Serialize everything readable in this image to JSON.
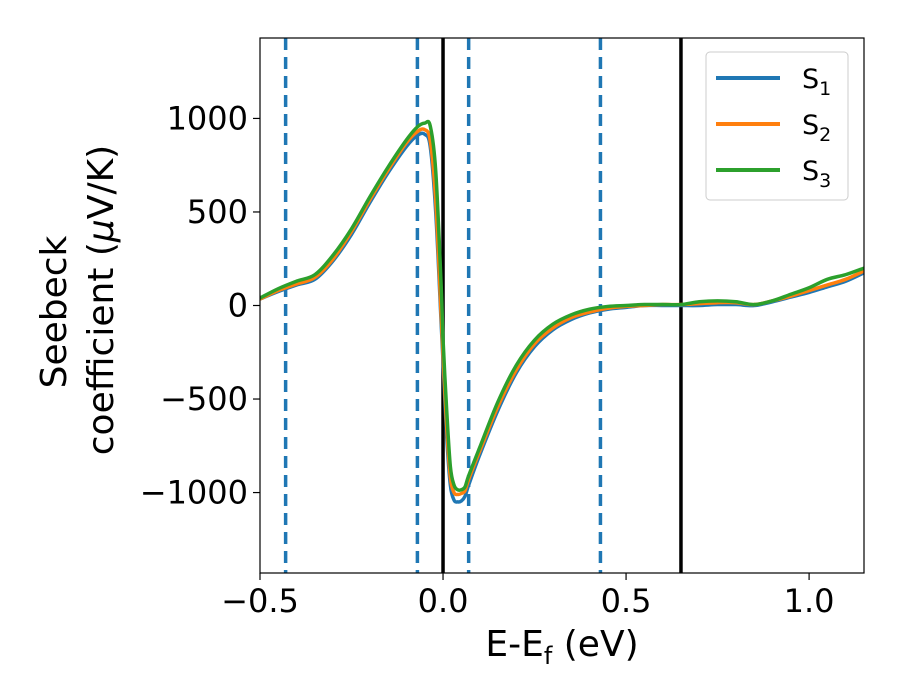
{
  "chart_data": {
    "type": "line",
    "title": "",
    "xlabel": "E-E",
    "xlabel_sub": "f",
    "xlabel_unit": " (eV)",
    "ylabel_line1": "Seebeck",
    "ylabel_line2_main": "coefficient  (",
    "ylabel_line2_mu": "μ",
    "ylabel_line2_unit": "V/K)",
    "xlim": [
      -0.5,
      1.15
    ],
    "ylim": [
      -1430,
      1430
    ],
    "xticks": [
      -0.5,
      0.0,
      0.5,
      1.0
    ],
    "xtick_labels": [
      "−0.5",
      "0.0",
      "0.5",
      "1.0"
    ],
    "yticks": [
      -1000,
      -500,
      0,
      500,
      1000
    ],
    "ytick_labels": [
      "−1000",
      "−500",
      "0",
      "500",
      "1000"
    ],
    "grid": false,
    "legend_position": "top-right",
    "series": [
      {
        "name": "S",
        "name_sub": "1",
        "color": "#1f77b4",
        "x": [
          -0.5,
          -0.45,
          -0.4,
          -0.35,
          -0.3,
          -0.25,
          -0.2,
          -0.15,
          -0.1,
          -0.07,
          -0.05,
          -0.035,
          -0.02,
          -0.005,
          0.0,
          0.01,
          0.02,
          0.03,
          0.04,
          0.05,
          0.06,
          0.07,
          0.1,
          0.15,
          0.2,
          0.25,
          0.3,
          0.35,
          0.4,
          0.45,
          0.5,
          0.55,
          0.6,
          0.65,
          0.7,
          0.75,
          0.8,
          0.85,
          0.9,
          0.95,
          1.0,
          1.05,
          1.1,
          1.15
        ],
        "y": [
          35,
          75,
          110,
          140,
          240,
          380,
          550,
          710,
          850,
          910,
          915,
          850,
          500,
          -100,
          -300,
          -700,
          -960,
          -1040,
          -1050,
          -1045,
          -1020,
          -960,
          -800,
          -560,
          -360,
          -220,
          -130,
          -75,
          -40,
          -20,
          -10,
          0,
          0,
          0,
          0,
          5,
          5,
          0,
          20,
          45,
          70,
          100,
          130,
          175
        ]
      },
      {
        "name": "S",
        "name_sub": "2",
        "color": "#ff7f0e",
        "x": [
          -0.5,
          -0.45,
          -0.4,
          -0.35,
          -0.3,
          -0.25,
          -0.2,
          -0.15,
          -0.1,
          -0.07,
          -0.05,
          -0.035,
          -0.02,
          -0.005,
          0.0,
          0.01,
          0.02,
          0.03,
          0.04,
          0.05,
          0.06,
          0.07,
          0.1,
          0.15,
          0.2,
          0.25,
          0.3,
          0.35,
          0.4,
          0.45,
          0.5,
          0.55,
          0.6,
          0.65,
          0.7,
          0.75,
          0.8,
          0.85,
          0.9,
          0.95,
          1.0,
          1.05,
          1.1,
          1.15
        ],
        "y": [
          35,
          80,
          115,
          150,
          250,
          395,
          565,
          725,
          870,
          930,
          940,
          880,
          560,
          -60,
          -260,
          -650,
          -920,
          -1000,
          -1010,
          -1005,
          -990,
          -930,
          -780,
          -540,
          -345,
          -205,
          -120,
          -65,
          -35,
          -15,
          -5,
          0,
          5,
          5,
          10,
          15,
          15,
          5,
          25,
          50,
          80,
          110,
          140,
          185
        ]
      },
      {
        "name": "S",
        "name_sub": "3",
        "color": "#2ca02c",
        "x": [
          -0.5,
          -0.45,
          -0.4,
          -0.35,
          -0.3,
          -0.25,
          -0.2,
          -0.15,
          -0.1,
          -0.07,
          -0.05,
          -0.035,
          -0.02,
          -0.005,
          0.0,
          0.01,
          0.02,
          0.03,
          0.04,
          0.05,
          0.06,
          0.07,
          0.1,
          0.15,
          0.2,
          0.25,
          0.3,
          0.35,
          0.4,
          0.45,
          0.5,
          0.55,
          0.6,
          0.65,
          0.7,
          0.75,
          0.8,
          0.85,
          0.9,
          0.95,
          1.0,
          1.05,
          1.1,
          1.15
        ],
        "y": [
          40,
          90,
          130,
          165,
          270,
          410,
          580,
          740,
          885,
          955,
          975,
          960,
          720,
          100,
          -180,
          -560,
          -860,
          -960,
          -985,
          -985,
          -970,
          -910,
          -760,
          -515,
          -320,
          -185,
          -100,
          -50,
          -20,
          -5,
          0,
          5,
          5,
          5,
          20,
          25,
          20,
          5,
          25,
          60,
          95,
          140,
          165,
          200
        ]
      }
    ],
    "vlines": [
      {
        "x": -0.43,
        "style": "dashed",
        "color": "#1f77b4"
      },
      {
        "x": -0.07,
        "style": "dashed",
        "color": "#1f77b4"
      },
      {
        "x": 0.07,
        "style": "dashed",
        "color": "#1f77b4"
      },
      {
        "x": 0.43,
        "style": "dashed",
        "color": "#1f77b4"
      },
      {
        "x": 0.0,
        "style": "solid",
        "color": "#000000"
      },
      {
        "x": 0.65,
        "style": "solid",
        "color": "#000000"
      }
    ]
  }
}
